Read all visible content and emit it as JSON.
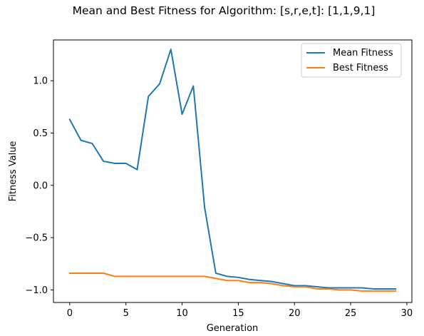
{
  "chart_data": {
    "type": "line",
    "title": "Mean and Best Fitness for Algorithm: [s,r,e,t]: [1,1,9,1]",
    "xlabel": "Generation",
    "ylabel": "Fitness Value",
    "xlim": [
      -1.45,
      30.45
    ],
    "ylim": [
      -1.12,
      1.39
    ],
    "x_ticks": [
      0,
      5,
      10,
      15,
      20,
      25,
      30
    ],
    "y_ticks": [
      -1.0,
      -0.5,
      0.0,
      0.5,
      1.0
    ],
    "y_tick_labels": [
      "−1.0",
      "−0.5",
      "0.0",
      "0.5",
      "1.0"
    ],
    "legend_position": "top-right",
    "grid": false,
    "x": [
      0,
      1,
      2,
      3,
      4,
      5,
      6,
      7,
      8,
      9,
      10,
      11,
      12,
      13,
      14,
      15,
      16,
      17,
      18,
      19,
      20,
      21,
      22,
      23,
      24,
      25,
      26,
      27,
      28,
      29
    ],
    "series": [
      {
        "name": "Mean Fitness",
        "color": "#1f77b4",
        "values": [
          0.63,
          0.43,
          0.4,
          0.23,
          0.21,
          0.21,
          0.15,
          0.85,
          0.97,
          1.3,
          0.68,
          0.95,
          -0.21,
          -0.84,
          -0.87,
          -0.88,
          -0.9,
          -0.91,
          -0.92,
          -0.94,
          -0.96,
          -0.96,
          -0.97,
          -0.98,
          -0.98,
          -0.98,
          -0.98,
          -0.99,
          -0.99,
          -0.99
        ]
      },
      {
        "name": "Best Fitness",
        "color": "#ff7f0e",
        "values": [
          -0.84,
          -0.84,
          -0.84,
          -0.84,
          -0.87,
          -0.87,
          -0.87,
          -0.87,
          -0.87,
          -0.87,
          -0.87,
          -0.87,
          -0.87,
          -0.89,
          -0.91,
          -0.91,
          -0.93,
          -0.93,
          -0.94,
          -0.96,
          -0.97,
          -0.97,
          -0.99,
          -0.99,
          -1.0,
          -1.0,
          -1.01,
          -1.01,
          -1.01,
          -1.01
        ]
      }
    ]
  }
}
